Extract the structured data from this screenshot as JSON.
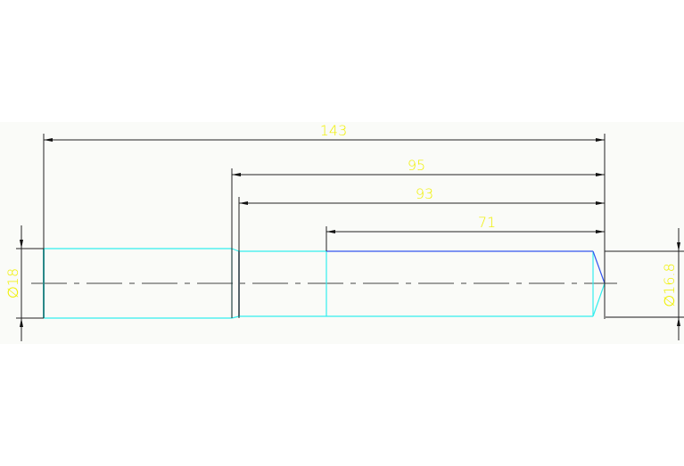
{
  "colors": {
    "background": "#ffffff",
    "drawing_area": "#fafbf8",
    "outline": "#33eeee",
    "outline_highlight": "#3355ee",
    "dimension_line": "#222222",
    "dimension_text": "#f0f000",
    "center_line": "#444444"
  },
  "dimensions": {
    "overall_length": "143",
    "length_95": "95",
    "length_93": "93",
    "length_71": "71",
    "diameter_left": "∅18",
    "diameter_right": "∅16.8"
  }
}
